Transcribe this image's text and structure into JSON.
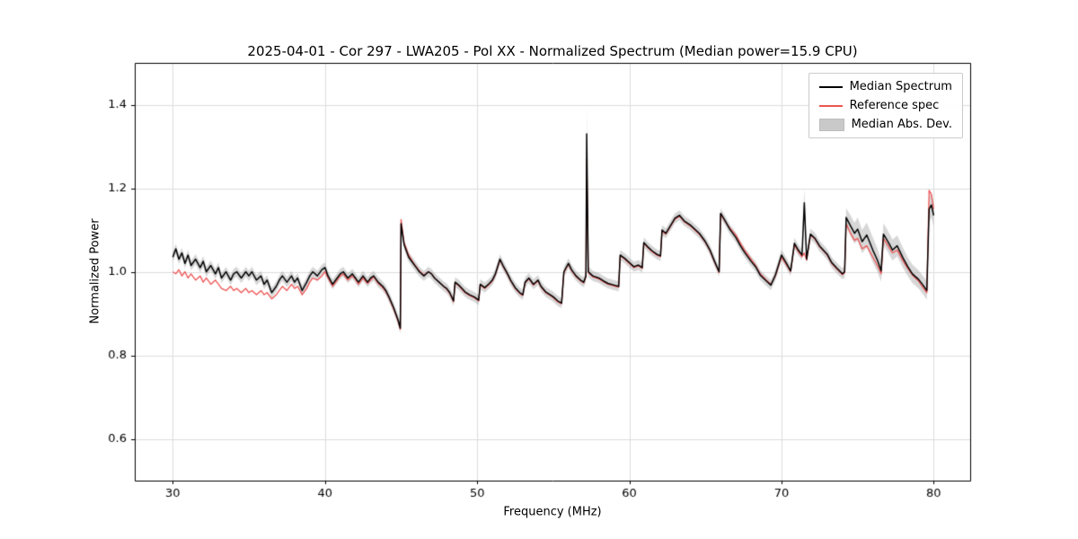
{
  "figure": {
    "title": "2025-04-01 - Cor 297 - LWA205 - Pol XX - Normalized Spectrum (Median power=15.9 CPU)",
    "xlabel": "Frequency (MHz)",
    "ylabel": "Normalized Power"
  },
  "legend": {
    "position": "upper right",
    "items": [
      {
        "label": "Median Spectrum",
        "type": "line",
        "color": "#000000"
      },
      {
        "label": "Reference spec",
        "type": "line",
        "color": "#ee5555"
      },
      {
        "label": "Median Abs. Dev.",
        "type": "patch",
        "color": "#c9c9c9"
      }
    ]
  },
  "chart_data": {
    "type": "line",
    "title": "2025-04-01 - Cor 297 - LWA205 - Pol XX - Normalized Spectrum (Median power=15.9 CPU)",
    "xlabel": "Frequency (MHz)",
    "ylabel": "Normalized Power",
    "xlim": [
      27.5,
      82.4
    ],
    "ylim": [
      0.5,
      1.5
    ],
    "xticks": [
      30,
      40,
      50,
      60,
      70,
      80
    ],
    "yticks": [
      0.6,
      0.8,
      1.0,
      1.2,
      1.4
    ],
    "grid": true,
    "legend_position": "upper right",
    "series": [
      {
        "name": "Median Spectrum",
        "color": "#000000",
        "width": 1.5
      },
      {
        "name": "Reference spec",
        "color": "#ee5555",
        "width": 1.3
      }
    ],
    "band": {
      "name": "Median Abs. Dev.",
      "color": "#8c8c8c",
      "alpha": 0.35,
      "center": "Median Spectrum"
    },
    "columns": [
      "freq_mhz",
      "median",
      "reference",
      "mad_half_width"
    ],
    "points": [
      [
        30.0,
        1.035,
        1.0,
        0.012
      ],
      [
        30.2,
        1.055,
        0.995,
        0.012
      ],
      [
        30.4,
        1.03,
        1.005,
        0.012
      ],
      [
        30.6,
        1.045,
        0.99,
        0.012
      ],
      [
        30.8,
        1.02,
        1.0,
        0.012
      ],
      [
        31.0,
        1.04,
        0.985,
        0.012
      ],
      [
        31.2,
        1.015,
        0.995,
        0.012
      ],
      [
        31.5,
        1.03,
        0.98,
        0.012
      ],
      [
        31.8,
        1.01,
        0.99,
        0.012
      ],
      [
        32.0,
        1.025,
        0.975,
        0.012
      ],
      [
        32.2,
        1.0,
        0.985,
        0.012
      ],
      [
        32.5,
        1.015,
        0.97,
        0.012
      ],
      [
        32.8,
        0.995,
        0.98,
        0.012
      ],
      [
        33.0,
        1.01,
        0.97,
        0.012
      ],
      [
        33.2,
        0.985,
        0.96,
        0.012
      ],
      [
        33.5,
        1.0,
        0.955,
        0.012
      ],
      [
        33.8,
        0.98,
        0.965,
        0.012
      ],
      [
        34.0,
        0.995,
        0.955,
        0.012
      ],
      [
        34.2,
        1.0,
        0.96,
        0.012
      ],
      [
        34.5,
        0.985,
        0.95,
        0.012
      ],
      [
        34.8,
        1.0,
        0.96,
        0.012
      ],
      [
        35.0,
        0.99,
        0.95,
        0.012
      ],
      [
        35.2,
        1.0,
        0.955,
        0.012
      ],
      [
        35.5,
        0.98,
        0.945,
        0.012
      ],
      [
        35.8,
        0.99,
        0.955,
        0.012
      ],
      [
        36.0,
        0.97,
        0.945,
        0.012
      ],
      [
        36.2,
        0.98,
        0.95,
        0.012
      ],
      [
        36.5,
        0.95,
        0.935,
        0.012
      ],
      [
        36.8,
        0.965,
        0.945,
        0.012
      ],
      [
        37.0,
        0.98,
        0.955,
        0.012
      ],
      [
        37.2,
        0.99,
        0.965,
        0.012
      ],
      [
        37.5,
        0.975,
        0.955,
        0.012
      ],
      [
        37.8,
        0.99,
        0.97,
        0.012
      ],
      [
        38.0,
        0.975,
        0.96,
        0.012
      ],
      [
        38.2,
        0.985,
        0.965,
        0.012
      ],
      [
        38.5,
        0.955,
        0.945,
        0.012
      ],
      [
        38.8,
        0.975,
        0.96,
        0.012
      ],
      [
        39.0,
        0.99,
        0.975,
        0.012
      ],
      [
        39.2,
        1.0,
        0.985,
        0.012
      ],
      [
        39.5,
        0.99,
        0.98,
        0.012
      ],
      [
        39.8,
        1.005,
        0.99,
        0.012
      ],
      [
        40.0,
        1.01,
        1.0,
        0.012
      ],
      [
        40.2,
        0.99,
        0.985,
        0.012
      ],
      [
        40.5,
        0.97,
        0.965,
        0.012
      ],
      [
        40.8,
        0.985,
        0.98,
        0.012
      ],
      [
        41.0,
        0.995,
        0.99,
        0.012
      ],
      [
        41.2,
        1.0,
        0.995,
        0.012
      ],
      [
        41.5,
        0.985,
        0.98,
        0.012
      ],
      [
        41.8,
        0.995,
        0.99,
        0.012
      ],
      [
        42.0,
        0.985,
        0.982,
        0.012
      ],
      [
        42.2,
        0.975,
        0.97,
        0.012
      ],
      [
        42.5,
        0.99,
        0.985,
        0.012
      ],
      [
        42.8,
        0.975,
        0.972,
        0.012
      ],
      [
        43.0,
        0.985,
        0.98,
        0.012
      ],
      [
        43.2,
        0.99,
        0.988,
        0.012
      ],
      [
        43.5,
        0.975,
        0.972,
        0.012
      ],
      [
        43.8,
        0.965,
        0.962,
        0.012
      ],
      [
        44.0,
        0.955,
        0.952,
        0.012
      ],
      [
        44.2,
        0.94,
        0.938,
        0.012
      ],
      [
        44.5,
        0.915,
        0.912,
        0.012
      ],
      [
        44.8,
        0.885,
        0.882,
        0.013
      ],
      [
        44.95,
        0.865,
        0.862,
        0.014
      ],
      [
        45.0,
        1.115,
        1.125,
        0.014
      ],
      [
        45.2,
        1.065,
        1.07,
        0.012
      ],
      [
        45.5,
        1.035,
        1.04,
        0.012
      ],
      [
        45.8,
        1.02,
        1.022,
        0.012
      ],
      [
        46.0,
        1.01,
        1.012,
        0.012
      ],
      [
        46.2,
        1.0,
        1.002,
        0.012
      ],
      [
        46.5,
        0.99,
        0.992,
        0.012
      ],
      [
        46.8,
        1.0,
        1.0,
        0.012
      ],
      [
        47.0,
        0.995,
        0.995,
        0.012
      ],
      [
        47.2,
        0.985,
        0.985,
        0.012
      ],
      [
        47.5,
        0.975,
        0.975,
        0.012
      ],
      [
        47.8,
        0.965,
        0.965,
        0.012
      ],
      [
        48.0,
        0.96,
        0.958,
        0.012
      ],
      [
        48.2,
        0.95,
        0.948,
        0.012
      ],
      [
        48.45,
        0.93,
        0.928,
        0.012
      ],
      [
        48.55,
        0.975,
        0.973,
        0.012
      ],
      [
        48.8,
        0.968,
        0.966,
        0.012
      ],
      [
        49.0,
        0.96,
        0.958,
        0.012
      ],
      [
        49.2,
        0.952,
        0.95,
        0.012
      ],
      [
        49.5,
        0.945,
        0.943,
        0.012
      ],
      [
        49.8,
        0.94,
        0.938,
        0.012
      ],
      [
        50.1,
        0.932,
        0.93,
        0.012
      ],
      [
        50.2,
        0.97,
        0.968,
        0.012
      ],
      [
        50.5,
        0.962,
        0.96,
        0.012
      ],
      [
        50.8,
        0.972,
        0.97,
        0.012
      ],
      [
        51.0,
        0.98,
        0.978,
        0.012
      ],
      [
        51.2,
        0.995,
        0.993,
        0.012
      ],
      [
        51.5,
        1.03,
        1.028,
        0.012
      ],
      [
        51.7,
        1.015,
        1.013,
        0.012
      ],
      [
        52.0,
        0.995,
        0.993,
        0.012
      ],
      [
        52.2,
        0.98,
        0.978,
        0.012
      ],
      [
        52.5,
        0.962,
        0.96,
        0.012
      ],
      [
        52.8,
        0.95,
        0.948,
        0.012
      ],
      [
        53.0,
        0.945,
        0.943,
        0.012
      ],
      [
        53.15,
        0.975,
        0.973,
        0.012
      ],
      [
        53.4,
        0.985,
        0.983,
        0.012
      ],
      [
        53.7,
        0.97,
        0.968,
        0.012
      ],
      [
        54.0,
        0.98,
        0.978,
        0.012
      ],
      [
        54.2,
        0.965,
        0.963,
        0.012
      ],
      [
        54.5,
        0.952,
        0.95,
        0.012
      ],
      [
        54.8,
        0.945,
        0.943,
        0.012
      ],
      [
        55.0,
        0.94,
        0.938,
        0.012
      ],
      [
        55.3,
        0.93,
        0.928,
        0.012
      ],
      [
        55.55,
        0.925,
        0.923,
        0.012
      ],
      [
        55.7,
        1.0,
        0.998,
        0.012
      ],
      [
        56.0,
        1.02,
        1.018,
        0.012
      ],
      [
        56.2,
        1.005,
        1.003,
        0.012
      ],
      [
        56.5,
        0.99,
        0.988,
        0.012
      ],
      [
        56.8,
        0.98,
        0.978,
        0.012
      ],
      [
        57.0,
        0.975,
        0.973,
        0.012
      ],
      [
        57.15,
        0.99,
        0.988,
        0.015
      ],
      [
        57.2,
        1.33,
        1.27,
        0.06
      ],
      [
        57.3,
        1.0,
        0.998,
        0.013
      ],
      [
        57.6,
        0.99,
        0.988,
        0.012
      ],
      [
        58.0,
        0.985,
        0.983,
        0.012
      ],
      [
        58.3,
        0.978,
        0.976,
        0.012
      ],
      [
        58.6,
        0.972,
        0.97,
        0.012
      ],
      [
        59.0,
        0.968,
        0.966,
        0.012
      ],
      [
        59.3,
        0.965,
        0.963,
        0.012
      ],
      [
        59.4,
        1.04,
        1.038,
        0.012
      ],
      [
        59.7,
        1.032,
        1.03,
        0.012
      ],
      [
        60.0,
        1.022,
        1.02,
        0.012
      ],
      [
        60.3,
        1.012,
        1.01,
        0.012
      ],
      [
        60.6,
        1.016,
        1.014,
        0.012
      ],
      [
        60.85,
        1.01,
        1.008,
        0.012
      ],
      [
        60.95,
        1.07,
        1.068,
        0.012
      ],
      [
        61.2,
        1.06,
        1.058,
        0.012
      ],
      [
        61.5,
        1.05,
        1.048,
        0.012
      ],
      [
        61.8,
        1.042,
        1.04,
        0.012
      ],
      [
        62.05,
        1.038,
        1.036,
        0.012
      ],
      [
        62.15,
        1.1,
        1.098,
        0.012
      ],
      [
        62.4,
        1.092,
        1.09,
        0.012
      ],
      [
        62.7,
        1.11,
        1.108,
        0.012
      ],
      [
        63.0,
        1.128,
        1.126,
        0.012
      ],
      [
        63.3,
        1.135,
        1.133,
        0.012
      ],
      [
        63.6,
        1.122,
        1.12,
        0.012
      ],
      [
        64.0,
        1.112,
        1.11,
        0.012
      ],
      [
        64.3,
        1.102,
        1.1,
        0.012
      ],
      [
        64.6,
        1.092,
        1.09,
        0.012
      ],
      [
        65.0,
        1.072,
        1.07,
        0.012
      ],
      [
        65.3,
        1.052,
        1.05,
        0.012
      ],
      [
        65.6,
        1.025,
        1.023,
        0.012
      ],
      [
        65.9,
        1.0,
        0.998,
        0.012
      ],
      [
        66.0,
        1.14,
        1.138,
        0.012
      ],
      [
        66.3,
        1.122,
        1.12,
        0.012
      ],
      [
        66.6,
        1.102,
        1.105,
        0.012
      ],
      [
        67.0,
        1.082,
        1.088,
        0.012
      ],
      [
        67.3,
        1.062,
        1.068,
        0.012
      ],
      [
        67.6,
        1.045,
        1.05,
        0.012
      ],
      [
        68.0,
        1.025,
        1.03,
        0.012
      ],
      [
        68.3,
        1.012,
        1.015,
        0.012
      ],
      [
        68.6,
        0.992,
        0.995,
        0.012
      ],
      [
        69.0,
        0.978,
        0.98,
        0.012
      ],
      [
        69.3,
        0.968,
        0.97,
        0.012
      ],
      [
        69.6,
        0.992,
        0.99,
        0.013
      ],
      [
        70.0,
        1.04,
        1.035,
        0.013
      ],
      [
        70.3,
        1.022,
        1.018,
        0.013
      ],
      [
        70.6,
        1.002,
        1.0,
        0.013
      ],
      [
        70.85,
        1.068,
        1.065,
        0.013
      ],
      [
        71.1,
        1.052,
        1.048,
        0.013
      ],
      [
        71.35,
        1.04,
        1.036,
        0.013
      ],
      [
        71.5,
        1.165,
        1.045,
        0.035
      ],
      [
        71.65,
        1.03,
        1.028,
        0.013
      ],
      [
        71.9,
        1.09,
        1.088,
        0.013
      ],
      [
        72.2,
        1.08,
        1.078,
        0.013
      ],
      [
        72.5,
        1.062,
        1.06,
        0.013
      ],
      [
        73.0,
        1.042,
        1.04,
        0.013
      ],
      [
        73.3,
        1.022,
        1.02,
        0.013
      ],
      [
        73.6,
        1.01,
        1.008,
        0.013
      ],
      [
        74.0,
        0.995,
        0.993,
        0.013
      ],
      [
        74.15,
        1.0,
        0.998,
        0.015
      ],
      [
        74.25,
        1.13,
        1.115,
        0.022
      ],
      [
        74.5,
        1.112,
        1.095,
        0.025
      ],
      [
        74.8,
        1.092,
        1.075,
        0.025
      ],
      [
        75.0,
        1.102,
        1.08,
        0.028
      ],
      [
        75.3,
        1.072,
        1.055,
        0.028
      ],
      [
        75.6,
        1.088,
        1.062,
        0.03
      ],
      [
        76.0,
        1.052,
        1.035,
        0.03
      ],
      [
        76.3,
        1.028,
        1.015,
        0.028
      ],
      [
        76.55,
        1.002,
        0.995,
        0.026
      ],
      [
        76.7,
        1.09,
        1.08,
        0.026
      ],
      [
        77.0,
        1.072,
        1.062,
        0.026
      ],
      [
        77.3,
        1.052,
        1.045,
        0.025
      ],
      [
        77.6,
        1.062,
        1.052,
        0.025
      ],
      [
        78.0,
        1.032,
        1.025,
        0.024
      ],
      [
        78.3,
        1.012,
        1.008,
        0.022
      ],
      [
        78.6,
        0.995,
        0.992,
        0.022
      ],
      [
        79.0,
        0.982,
        0.978,
        0.022
      ],
      [
        79.3,
        0.968,
        0.962,
        0.022
      ],
      [
        79.55,
        0.955,
        0.95,
        0.022
      ],
      [
        79.7,
        1.15,
        1.195,
        0.03
      ],
      [
        79.85,
        1.16,
        1.185,
        0.03
      ],
      [
        80.0,
        1.135,
        1.15,
        0.028
      ]
    ]
  }
}
